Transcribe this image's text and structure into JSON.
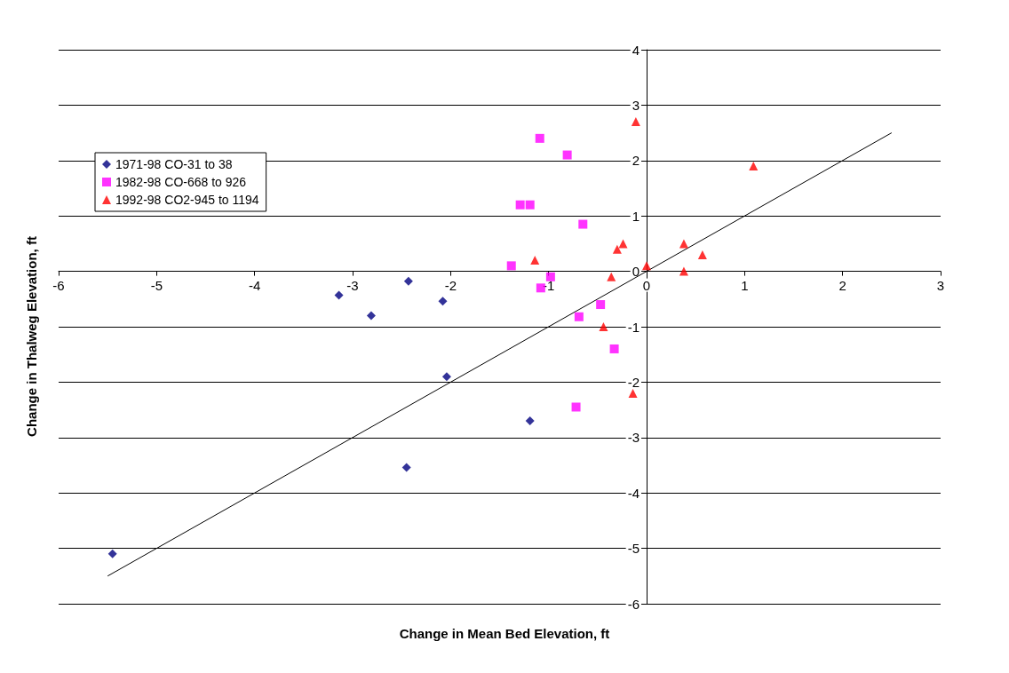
{
  "chart_data": {
    "type": "scatter",
    "xlabel": "Change in Mean Bed Elevation, ft",
    "ylabel": "Change in Thalweg Elevation, ft",
    "xlim": [
      -6,
      3
    ],
    "xticks": [
      -6,
      -5,
      -4,
      -3,
      -2,
      -1,
      0,
      1,
      2,
      3
    ],
    "ylim": [
      -6,
      4
    ],
    "yticks": [
      -6,
      -5,
      -4,
      -3,
      -2,
      -1,
      0,
      1,
      2,
      3,
      4
    ],
    "grid": "y",
    "legend": "top left",
    "series": [
      {
        "name": "1971-98 CO-31 to 38",
        "color": "#000080",
        "marker": "diamond",
        "x": [
          -5.45,
          -3.14,
          -2.81,
          -2.43,
          -2.08,
          -2.04,
          -2.45,
          -1.19
        ],
        "values": [
          -5.1,
          -0.43,
          -0.8,
          -0.18,
          -0.54,
          -1.9,
          -3.54,
          -2.7
        ]
      },
      {
        "name": "1982-98 CO-668 to 926",
        "color": "#ff00ff",
        "marker": "square",
        "x": [
          -1.38,
          -1.29,
          -1.19,
          -1.09,
          -0.81,
          -0.65,
          -0.98,
          -1.08,
          -0.69,
          -0.47,
          -0.33,
          -0.72
        ],
        "values": [
          0.1,
          1.2,
          1.2,
          2.4,
          2.1,
          0.85,
          -0.1,
          -0.3,
          -0.82,
          -0.6,
          -1.4,
          -2.45
        ]
      },
      {
        "name": "1992-98 CO2-945 to 1194",
        "color": "#ff0000",
        "marker": "triangle",
        "x": [
          -0.11,
          1.09,
          -1.14,
          -0.3,
          -0.24,
          -0.36,
          -0.44,
          -0.14,
          0,
          0.38,
          0.38,
          0.57
        ],
        "values": [
          2.7,
          1.9,
          0.2,
          0.4,
          0.5,
          -0.1,
          -1.0,
          -2.2,
          0.1,
          0.5,
          0,
          0.3
        ]
      },
      {
        "type": "line",
        "color": "#000000",
        "marker": "none",
        "x": [
          -5.5,
          2.5
        ],
        "values": [
          -5.5,
          2.5
        ]
      }
    ]
  }
}
